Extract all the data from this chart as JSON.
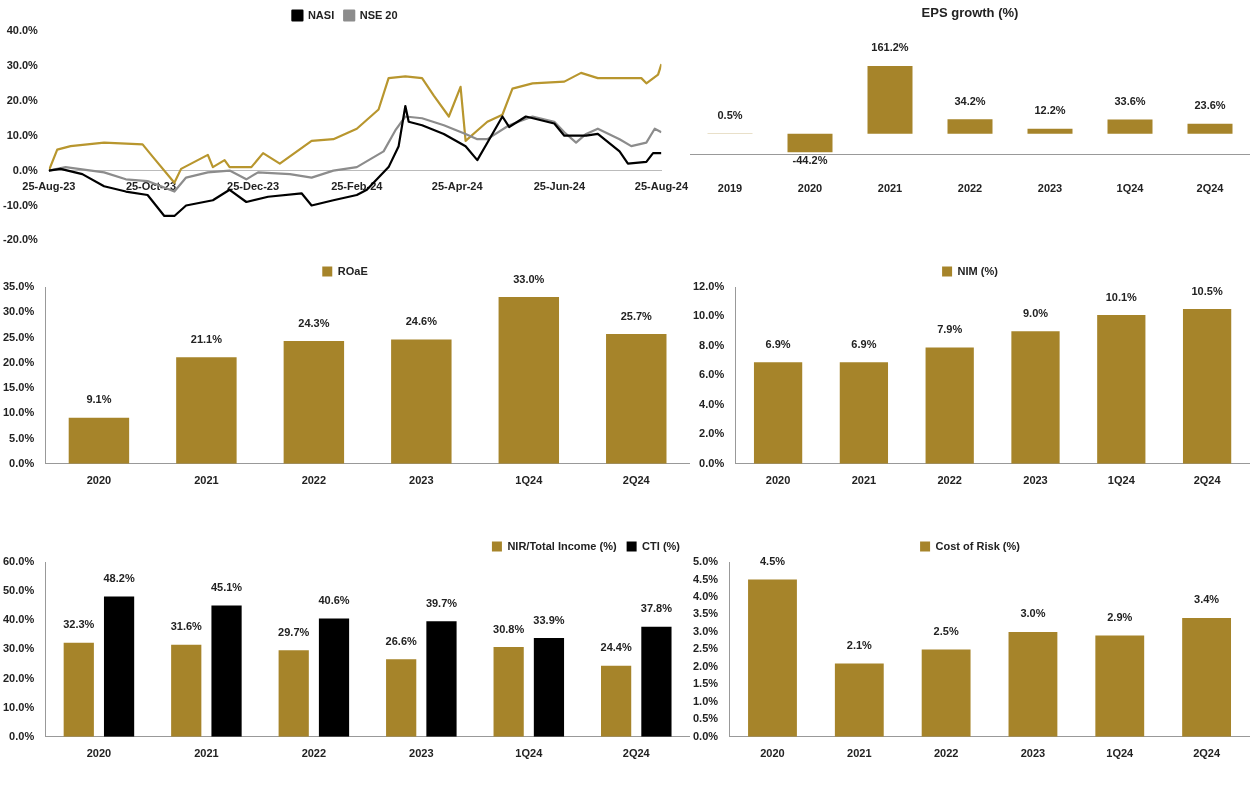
{
  "chart_data": [
    {
      "type": "line",
      "legend": "top",
      "marker": "none",
      "xlim": [
        "2023-08-25",
        "2024-08-25"
      ],
      "xticks": [
        {
          "value": "2023-08-25",
          "label": "25-Aug-23"
        },
        {
          "value": "2023-10-25",
          "label": "25-Oct-23"
        },
        {
          "value": "2023-12-25",
          "label": "25-Dec-23"
        },
        {
          "value": "2024-02-25",
          "label": "25-Feb-24"
        },
        {
          "value": "2024-04-25",
          "label": "25-Apr-24"
        },
        {
          "value": "2024-06-25",
          "label": "25-Jun-24"
        },
        {
          "value": "2024-08-25",
          "label": "25-Aug-24"
        }
      ],
      "ylim": [
        -20,
        40
      ],
      "yticks": [
        {
          "value": -20,
          "label": "-20.0%"
        },
        {
          "value": -10,
          "label": "-10.0%"
        },
        {
          "value": 0,
          "label": "0.0%"
        },
        {
          "value": 10,
          "label": "10.0%"
        },
        {
          "value": 20,
          "label": "20.0%"
        },
        {
          "value": 30,
          "label": "30.0%"
        },
        {
          "value": 40,
          "label": "40.0%"
        }
      ],
      "series": [
        {
          "name": "NASI",
          "color": "#000000",
          "x": [
            "2023-08-25",
            "2023-09-01",
            "2023-09-14",
            "2023-09-27",
            "2023-10-10",
            "2023-10-23",
            "2023-11-02",
            "2023-11-08",
            "2023-11-15",
            "2023-12-01",
            "2023-12-11",
            "2023-12-21",
            "2024-01-03",
            "2024-01-23",
            "2024-01-29",
            "2024-02-11",
            "2024-02-25",
            "2024-03-02",
            "2024-03-15",
            "2024-03-21",
            "2024-03-25",
            "2024-03-27",
            "2024-04-04",
            "2024-04-17",
            "2024-04-30",
            "2024-05-07",
            "2024-05-13",
            "2024-05-22",
            "2024-05-26",
            "2024-06-05",
            "2024-06-22",
            "2024-06-28",
            "2024-07-11",
            "2024-07-18",
            "2024-07-31",
            "2024-08-05",
            "2024-08-16",
            "2024-08-20",
            "2024-08-25"
          ],
          "values": [
            0,
            0.5,
            -1,
            -4.5,
            -6,
            -7,
            -13,
            -13,
            -10,
            -8.5,
            -5.5,
            -9,
            -7.5,
            -6.5,
            -10,
            -8.5,
            -7,
            -5.5,
            1,
            7,
            18.5,
            14,
            13,
            10.5,
            7,
            3,
            8,
            15.5,
            12.5,
            15.5,
            13.5,
            10,
            10,
            10.5,
            5.5,
            2,
            2.5,
            5,
            5
          ]
        },
        {
          "name": "NSE 20",
          "color": "#8c8c8c",
          "x": [
            "2023-08-25",
            "2023-09-04",
            "2023-09-27",
            "2023-10-10",
            "2023-10-23",
            "2023-11-08",
            "2023-11-15",
            "2023-11-28",
            "2023-12-11",
            "2023-12-21",
            "2023-12-28",
            "2024-01-16",
            "2024-01-29",
            "2024-02-11",
            "2024-02-25",
            "2024-03-12",
            "2024-03-19",
            "2024-03-25",
            "2024-04-04",
            "2024-04-17",
            "2024-04-30",
            "2024-05-07",
            "2024-05-13",
            "2024-05-26",
            "2024-06-09",
            "2024-06-22",
            "2024-06-28",
            "2024-07-05",
            "2024-07-11",
            "2024-07-18",
            "2024-07-31",
            "2024-08-07",
            "2024-08-16",
            "2024-08-21",
            "2024-08-25"
          ],
          "values": [
            0,
            1,
            -0.5,
            -2.5,
            -3,
            -6,
            -2,
            -0.5,
            0,
            -2.5,
            -0.5,
            -1,
            -2,
            0,
            1,
            5.5,
            11.5,
            15.5,
            15,
            13,
            10.5,
            9,
            9,
            13,
            15.5,
            14,
            11,
            8,
            10.5,
            12,
            9,
            7,
            8,
            12,
            11
          ]
        },
        {
          "color": "#b8962e",
          "x": [
            "2023-08-25",
            "2023-08-30",
            "2023-09-07",
            "2023-09-27",
            "2023-10-20",
            "2023-10-26",
            "2023-11-08",
            "2023-11-12",
            "2023-11-28",
            "2023-12-01",
            "2023-12-08",
            "2023-12-11",
            "2023-12-24",
            "2023-12-31",
            "2024-01-10",
            "2024-01-29",
            "2024-02-11",
            "2024-02-25",
            "2024-03-09",
            "2024-03-15",
            "2024-03-25",
            "2024-04-04",
            "2024-04-11",
            "2024-04-20",
            "2024-04-27",
            "2024-04-30",
            "2024-05-07",
            "2024-05-13",
            "2024-05-22",
            "2024-05-28",
            "2024-06-09",
            "2024-06-28",
            "2024-07-08",
            "2024-07-18",
            "2024-08-13",
            "2024-08-16",
            "2024-08-23",
            "2024-08-25"
          ],
          "values": [
            0,
            6,
            7,
            8,
            7.5,
            4,
            -3.5,
            0.5,
            4.5,
            1,
            3,
            1,
            1,
            5,
            2,
            8.5,
            9,
            12,
            17.5,
            26.5,
            27,
            26.5,
            21.5,
            15.5,
            24,
            8.5,
            11.5,
            14,
            16,
            23.5,
            25,
            25.5,
            28,
            26.5,
            26.5,
            25,
            27.5,
            30.5
          ]
        }
      ]
    },
    {
      "type": "bar",
      "title": "EPS growth (%)",
      "tick_labels": "x",
      "categories": [
        "2019",
        "2020",
        "2021",
        "2022",
        "2023",
        "1Q24",
        "2Q24"
      ],
      "series": [
        {
          "color": "#a6842a",
          "values": [
            0.5,
            -44.2,
            161.2,
            34.2,
            12.2,
            33.6,
            23.6
          ],
          "value_labels": [
            "0.5%",
            "-44.2%",
            "161.2%",
            "34.2%",
            "12.2%",
            "33.6%",
            "23.6%"
          ]
        }
      ]
    },
    {
      "type": "bar",
      "legend": "top",
      "categories": [
        "2020",
        "2021",
        "2022",
        "2023",
        "1Q24",
        "2Q24"
      ],
      "ylim": [
        0,
        35
      ],
      "yticks": [
        {
          "value": 0,
          "label": "0.0%"
        },
        {
          "value": 5,
          "label": "5.0%"
        },
        {
          "value": 10,
          "label": "10.0%"
        },
        {
          "value": 15,
          "label": "15.0%"
        },
        {
          "value": 20,
          "label": "20.0%"
        },
        {
          "value": 25,
          "label": "25.0%"
        },
        {
          "value": 30,
          "label": "30.0%"
        },
        {
          "value": 35,
          "label": "35.0%"
        }
      ],
      "series": [
        {
          "name": "ROaE",
          "color": "#a6842a",
          "values": [
            9.1,
            21.1,
            24.3,
            24.6,
            33.0,
            25.7
          ],
          "value_labels": [
            "9.1%",
            "21.1%",
            "24.3%",
            "24.6%",
            "33.0%",
            "25.7%"
          ]
        }
      ]
    },
    {
      "type": "bar",
      "legend": "top",
      "categories": [
        "2020",
        "2021",
        "2022",
        "2023",
        "1Q24",
        "2Q24"
      ],
      "ylim": [
        0,
        12
      ],
      "yticks": [
        {
          "value": 0,
          "label": "0.0%"
        },
        {
          "value": 2,
          "label": "2.0%"
        },
        {
          "value": 4,
          "label": "4.0%"
        },
        {
          "value": 6,
          "label": "6.0%"
        },
        {
          "value": 8,
          "label": "8.0%"
        },
        {
          "value": 10,
          "label": "10.0%"
        },
        {
          "value": 12,
          "label": "12.0%"
        }
      ],
      "series": [
        {
          "name": "NIM (%)",
          "color": "#a6842a",
          "values": [
            6.9,
            6.9,
            7.9,
            9.0,
            10.1,
            10.5
          ],
          "value_labels": [
            "6.9%",
            "6.9%",
            "7.9%",
            "9.0%",
            "10.1%",
            "10.5%"
          ]
        }
      ]
    },
    {
      "type": "bar",
      "legend": "top right",
      "categories": [
        "2020",
        "2021",
        "2022",
        "2023",
        "1Q24",
        "2Q24"
      ],
      "ylim": [
        0,
        60
      ],
      "yticks": [
        {
          "value": 0,
          "label": "0.0%"
        },
        {
          "value": 10,
          "label": "10.0%"
        },
        {
          "value": 20,
          "label": "20.0%"
        },
        {
          "value": 30,
          "label": "30.0%"
        },
        {
          "value": 40,
          "label": "40.0%"
        },
        {
          "value": 50,
          "label": "50.0%"
        },
        {
          "value": 60,
          "label": "60.0%"
        }
      ],
      "series": [
        {
          "name": "NIR/Total Income (%)",
          "color": "#a6842a",
          "values": [
            32.3,
            31.6,
            29.7,
            26.6,
            30.8,
            24.4
          ],
          "value_labels": [
            "32.3%",
            "31.6%",
            "29.7%",
            "26.6%",
            "30.8%",
            "24.4%"
          ]
        },
        {
          "name": "CTI (%)",
          "color": "#000000",
          "values": [
            48.2,
            45.1,
            40.6,
            39.7,
            33.9,
            37.8
          ],
          "value_labels": [
            "48.2%",
            "45.1%",
            "40.6%",
            "39.7%",
            "33.9%",
            "37.8%"
          ]
        }
      ]
    },
    {
      "type": "bar",
      "legend": "top",
      "categories": [
        "2020",
        "2021",
        "2022",
        "2023",
        "1Q24",
        "2Q24"
      ],
      "ylim": [
        0,
        5
      ],
      "yticks": [
        {
          "value": 0,
          "label": "0.0%"
        },
        {
          "value": 0.5,
          "label": "0.5%"
        },
        {
          "value": 1,
          "label": "1.0%"
        },
        {
          "value": 1.5,
          "label": "1.5%"
        },
        {
          "value": 2,
          "label": "2.0%"
        },
        {
          "value": 2.5,
          "label": "2.5%"
        },
        {
          "value": 3,
          "label": "3.0%"
        },
        {
          "value": 3.5,
          "label": "3.5%"
        },
        {
          "value": 4,
          "label": "4.0%"
        },
        {
          "value": 4.5,
          "label": "4.5%"
        },
        {
          "value": 5,
          "label": "5.0%"
        }
      ],
      "series": [
        {
          "name": "Cost of Risk (%)",
          "color": "#a6842a",
          "values": [
            4.5,
            2.1,
            2.5,
            3.0,
            2.9,
            3.4
          ],
          "value_labels": [
            "4.5%",
            "2.1%",
            "2.5%",
            "3.0%",
            "2.9%",
            "3.4%"
          ]
        }
      ]
    }
  ]
}
